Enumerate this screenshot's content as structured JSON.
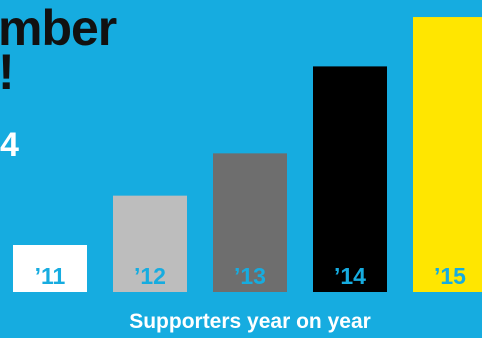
{
  "headline": "mber\n!",
  "subhead": "4",
  "colors": {
    "background": "#16ace0",
    "headline": "#111111",
    "caption": "#ffffff"
  },
  "chart_data": {
    "type": "bar",
    "title": "",
    "xlabel": "Supporters year on year",
    "ylabel": "",
    "categories": [
      "’11",
      "’12",
      "’13",
      "’14",
      "’15"
    ],
    "values": [
      1,
      2.05,
      2.95,
      4.8,
      5.85
    ],
    "ylim": [
      0,
      6
    ],
    "grid": false,
    "legend": "none",
    "bar_colors": [
      "#ffffff",
      "#bdbdbd",
      "#6e6e6e",
      "#000000",
      "#ffe600"
    ],
    "label_colors": [
      "#16ace0",
      "#16ace0",
      "#16ace0",
      "#16ace0",
      "#16ace0"
    ]
  }
}
